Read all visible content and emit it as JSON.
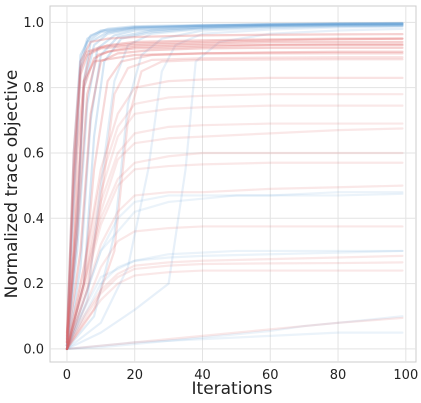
{
  "chart_data": {
    "type": "line",
    "title": "",
    "xlabel": "Iterations",
    "ylabel": "Normalized trace objective",
    "xlim": [
      -5,
      103
    ],
    "ylim": [
      -0.04,
      1.05
    ],
    "xticks": [
      0,
      20,
      40,
      60,
      80,
      100
    ],
    "xtick_labels": [
      "0",
      "20",
      "40",
      "60",
      "80",
      "100"
    ],
    "yticks": [
      0.0,
      0.2,
      0.4,
      0.6,
      0.8,
      1.0
    ],
    "ytick_labels": [
      "0.0",
      "0.2",
      "0.4",
      "0.6",
      "0.8",
      "1.0"
    ],
    "grid": true,
    "legend": false,
    "colors": {
      "blue": "#5b9bd5",
      "blue_dark": "#3d85c6",
      "red": "#e06666",
      "red_dark": "#d9534f",
      "grid": "#e3e3e3",
      "spine": "#cccccc"
    },
    "series": [
      {
        "color": "blue",
        "opacity": 0.25,
        "x": [
          0,
          2,
          4,
          6,
          10,
          20,
          40,
          60,
          80,
          99
        ],
        "y": [
          0.01,
          0.45,
          0.85,
          0.94,
          0.97,
          0.985,
          0.99,
          0.993,
          0.995,
          0.996
        ]
      },
      {
        "color": "blue",
        "opacity": 0.25,
        "x": [
          0,
          2,
          4,
          6,
          10,
          20,
          40,
          60,
          80,
          99
        ],
        "y": [
          0.02,
          0.5,
          0.88,
          0.95,
          0.975,
          0.985,
          0.99,
          0.994,
          0.996,
          0.997
        ]
      },
      {
        "color": "blue",
        "opacity": 0.25,
        "x": [
          0,
          3,
          5,
          8,
          12,
          20,
          40,
          60,
          80,
          99
        ],
        "y": [
          0.0,
          0.4,
          0.8,
          0.93,
          0.965,
          0.98,
          0.988,
          0.992,
          0.994,
          0.995
        ]
      },
      {
        "color": "blue",
        "opacity": 0.25,
        "x": [
          0,
          3,
          6,
          9,
          14,
          20,
          40,
          60,
          80,
          99
        ],
        "y": [
          0.01,
          0.3,
          0.75,
          0.92,
          0.96,
          0.975,
          0.985,
          0.99,
          0.993,
          0.994
        ]
      },
      {
        "color": "blue",
        "opacity": 0.25,
        "x": [
          0,
          4,
          7,
          10,
          15,
          25,
          40,
          60,
          80,
          99
        ],
        "y": [
          0.0,
          0.25,
          0.7,
          0.9,
          0.955,
          0.975,
          0.985,
          0.99,
          0.992,
          0.993
        ]
      },
      {
        "color": "blue",
        "opacity": 0.25,
        "x": [
          0,
          2,
          4,
          7,
          12,
          20,
          40,
          60,
          80,
          99
        ],
        "y": [
          0.03,
          0.6,
          0.9,
          0.96,
          0.98,
          0.988,
          0.992,
          0.995,
          0.997,
          0.998
        ]
      },
      {
        "color": "blue",
        "opacity": 0.25,
        "x": [
          0,
          5,
          8,
          11,
          16,
          25,
          40,
          60,
          80,
          99
        ],
        "y": [
          0.0,
          0.2,
          0.65,
          0.88,
          0.95,
          0.97,
          0.982,
          0.988,
          0.99,
          0.991
        ]
      },
      {
        "color": "blue",
        "opacity": 0.25,
        "x": [
          0,
          3,
          5,
          7,
          12,
          20,
          40,
          60,
          80,
          99
        ],
        "y": [
          0.01,
          0.35,
          0.82,
          0.94,
          0.97,
          0.982,
          0.99,
          0.993,
          0.995,
          0.996
        ]
      },
      {
        "color": "blue",
        "opacity": 0.18,
        "x": [
          0,
          6,
          10,
          14,
          18,
          25,
          40,
          60,
          80,
          99
        ],
        "y": [
          0.0,
          0.15,
          0.5,
          0.82,
          0.93,
          0.965,
          0.98,
          0.986,
          0.989,
          0.99
        ]
      },
      {
        "color": "blue",
        "opacity": 0.18,
        "x": [
          0,
          8,
          14,
          18,
          22,
          28,
          40,
          60,
          80,
          99
        ],
        "y": [
          0.0,
          0.1,
          0.35,
          0.75,
          0.9,
          0.95,
          0.975,
          0.983,
          0.987,
          0.989
        ]
      },
      {
        "color": "blue",
        "opacity": 0.15,
        "x": [
          0,
          10,
          18,
          24,
          28,
          32,
          40,
          60,
          80,
          99
        ],
        "y": [
          0.0,
          0.08,
          0.25,
          0.55,
          0.85,
          0.93,
          0.965,
          0.978,
          0.984,
          0.987
        ]
      },
      {
        "color": "blue",
        "opacity": 0.15,
        "x": [
          0,
          10,
          20,
          30,
          35,
          38,
          45,
          60,
          80,
          99
        ],
        "y": [
          0.0,
          0.05,
          0.12,
          0.2,
          0.55,
          0.88,
          0.94,
          0.965,
          0.975,
          0.98
        ]
      },
      {
        "color": "blue",
        "opacity": 0.12,
        "x": [
          0,
          5,
          10,
          15,
          20,
          30,
          40,
          60,
          80,
          99
        ],
        "y": [
          0.0,
          0.15,
          0.3,
          0.4,
          0.45,
          0.47,
          0.47,
          0.47,
          0.47,
          0.475
        ]
      },
      {
        "color": "blue",
        "opacity": 0.12,
        "x": [
          0,
          5,
          10,
          15,
          20,
          30,
          40,
          60,
          80,
          99
        ],
        "y": [
          0.0,
          0.1,
          0.2,
          0.25,
          0.27,
          0.28,
          0.285,
          0.29,
          0.295,
          0.3
        ]
      },
      {
        "color": "blue",
        "opacity": 0.12,
        "x": [
          0,
          10,
          20,
          30,
          40,
          50,
          60,
          70,
          80,
          99
        ],
        "y": [
          0.0,
          0.01,
          0.02,
          0.025,
          0.03,
          0.035,
          0.04,
          0.045,
          0.05,
          0.05
        ]
      },
      {
        "color": "blue",
        "opacity": 0.12,
        "x": [
          0,
          10,
          20,
          30,
          40,
          50,
          60,
          70,
          80,
          99
        ],
        "y": [
          0.0,
          0.005,
          0.015,
          0.025,
          0.035,
          0.045,
          0.055,
          0.07,
          0.08,
          0.1
        ]
      },
      {
        "color": "blue",
        "opacity": 0.12,
        "x": [
          0,
          5,
          10,
          20,
          30,
          40,
          50,
          60,
          80,
          99
        ],
        "y": [
          0.0,
          0.15,
          0.3,
          0.42,
          0.45,
          0.46,
          0.47,
          0.47,
          0.48,
          0.48
        ]
      },
      {
        "color": "blue",
        "opacity": 0.12,
        "x": [
          0,
          5,
          10,
          20,
          30,
          40,
          50,
          60,
          80,
          99
        ],
        "y": [
          0.0,
          0.12,
          0.22,
          0.27,
          0.29,
          0.295,
          0.3,
          0.3,
          0.3,
          0.3
        ]
      },
      {
        "color": "red",
        "opacity": 0.3,
        "x": [
          0,
          2,
          4,
          6,
          10,
          20,
          40,
          60,
          80,
          99
        ],
        "y": [
          0.02,
          0.5,
          0.84,
          0.9,
          0.92,
          0.93,
          0.935,
          0.94,
          0.94,
          0.94
        ]
      },
      {
        "color": "red",
        "opacity": 0.3,
        "x": [
          0,
          2,
          4,
          6,
          10,
          20,
          40,
          60,
          80,
          99
        ],
        "y": [
          0.03,
          0.55,
          0.86,
          0.91,
          0.925,
          0.935,
          0.94,
          0.945,
          0.948,
          0.95
        ]
      },
      {
        "color": "red",
        "opacity": 0.3,
        "x": [
          0,
          3,
          5,
          8,
          12,
          20,
          40,
          60,
          80,
          99
        ],
        "y": [
          0.01,
          0.4,
          0.8,
          0.89,
          0.91,
          0.92,
          0.925,
          0.93,
          0.93,
          0.93
        ]
      },
      {
        "color": "red",
        "opacity": 0.3,
        "x": [
          0,
          3,
          6,
          9,
          14,
          20,
          40,
          60,
          80,
          99
        ],
        "y": [
          0.02,
          0.35,
          0.78,
          0.9,
          0.915,
          0.925,
          0.93,
          0.932,
          0.933,
          0.933
        ]
      },
      {
        "color": "red",
        "opacity": 0.3,
        "x": [
          0,
          4,
          7,
          10,
          15,
          25,
          40,
          60,
          80,
          99
        ],
        "y": [
          0.01,
          0.3,
          0.72,
          0.88,
          0.905,
          0.915,
          0.92,
          0.922,
          0.922,
          0.922
        ]
      },
      {
        "color": "red",
        "opacity": 0.3,
        "x": [
          0,
          2,
          4,
          7,
          12,
          20,
          40,
          60,
          80,
          99
        ],
        "y": [
          0.04,
          0.6,
          0.88,
          0.94,
          0.95,
          0.955,
          0.96,
          0.962,
          0.963,
          0.964
        ]
      },
      {
        "color": "red",
        "opacity": 0.3,
        "x": [
          0,
          2,
          3,
          5,
          8,
          20,
          40,
          60,
          80,
          99
        ],
        "y": [
          0.05,
          0.3,
          0.6,
          0.82,
          0.88,
          0.9,
          0.905,
          0.908,
          0.91,
          0.91
        ]
      },
      {
        "color": "red",
        "opacity": 0.3,
        "x": [
          0,
          3,
          5,
          7,
          12,
          20,
          40,
          60,
          80,
          99
        ],
        "y": [
          0.02,
          0.45,
          0.82,
          0.91,
          0.93,
          0.94,
          0.945,
          0.948,
          0.95,
          0.95
        ]
      },
      {
        "color": "red",
        "opacity": 0.25,
        "x": [
          0,
          5,
          8,
          12,
          16,
          25,
          40,
          60,
          80,
          99
        ],
        "y": [
          0.0,
          0.2,
          0.55,
          0.82,
          0.88,
          0.9,
          0.905,
          0.905,
          0.905,
          0.905
        ]
      },
      {
        "color": "red",
        "opacity": 0.2,
        "x": [
          0,
          6,
          10,
          14,
          18,
          25,
          40,
          60,
          80,
          99
        ],
        "y": [
          0.0,
          0.18,
          0.45,
          0.78,
          0.86,
          0.885,
          0.89,
          0.892,
          0.893,
          0.893
        ]
      },
      {
        "color": "red",
        "opacity": 0.2,
        "x": [
          0,
          8,
          14,
          18,
          22,
          28,
          40,
          60,
          80,
          99
        ],
        "y": [
          0.0,
          0.12,
          0.3,
          0.7,
          0.85,
          0.88,
          0.885,
          0.886,
          0.887,
          0.887
        ]
      },
      {
        "color": "red",
        "opacity": 0.18,
        "x": [
          0,
          5,
          10,
          15,
          20,
          30,
          40,
          60,
          80,
          99
        ],
        "y": [
          0.0,
          0.25,
          0.55,
          0.72,
          0.8,
          0.82,
          0.825,
          0.83,
          0.83,
          0.83
        ]
      },
      {
        "color": "red",
        "opacity": 0.15,
        "x": [
          0,
          5,
          10,
          15,
          20,
          30,
          40,
          60,
          80,
          99
        ],
        "y": [
          0.0,
          0.2,
          0.45,
          0.6,
          0.66,
          0.68,
          0.685,
          0.69,
          0.69,
          0.69
        ]
      },
      {
        "color": "red",
        "opacity": 0.15,
        "x": [
          0,
          5,
          10,
          15,
          20,
          30,
          40,
          60,
          80,
          99
        ],
        "y": [
          0.0,
          0.22,
          0.48,
          0.65,
          0.72,
          0.735,
          0.74,
          0.745,
          0.745,
          0.745
        ]
      },
      {
        "color": "red",
        "opacity": 0.15,
        "x": [
          0,
          5,
          10,
          15,
          20,
          30,
          40,
          60,
          80,
          99
        ],
        "y": [
          0.0,
          0.2,
          0.4,
          0.52,
          0.57,
          0.59,
          0.6,
          0.6,
          0.6,
          0.6
        ]
      },
      {
        "color": "red",
        "opacity": 0.15,
        "x": [
          0,
          5,
          10,
          15,
          20,
          30,
          40,
          60,
          80,
          99
        ],
        "y": [
          0.0,
          0.18,
          0.38,
          0.5,
          0.55,
          0.56,
          0.565,
          0.57,
          0.57,
          0.57
        ]
      },
      {
        "color": "red",
        "opacity": 0.15,
        "x": [
          0,
          5,
          10,
          15,
          20,
          30,
          40,
          60,
          80,
          99
        ],
        "y": [
          0.0,
          0.2,
          0.42,
          0.58,
          0.63,
          0.645,
          0.65,
          0.66,
          0.67,
          0.675
        ]
      },
      {
        "color": "red",
        "opacity": 0.15,
        "x": [
          0,
          5,
          10,
          15,
          20,
          30,
          40,
          60,
          80,
          99
        ],
        "y": [
          0.0,
          0.15,
          0.32,
          0.42,
          0.47,
          0.48,
          0.48,
          0.49,
          0.495,
          0.5
        ]
      },
      {
        "color": "red",
        "opacity": 0.15,
        "x": [
          0,
          5,
          10,
          15,
          20,
          30,
          40,
          60,
          80,
          99
        ],
        "y": [
          0.0,
          0.12,
          0.25,
          0.33,
          0.36,
          0.37,
          0.375,
          0.375,
          0.375,
          0.375
        ]
      },
      {
        "color": "red",
        "opacity": 0.15,
        "x": [
          0,
          5,
          10,
          15,
          20,
          30,
          40,
          60,
          80,
          99
        ],
        "y": [
          0.0,
          0.1,
          0.18,
          0.23,
          0.255,
          0.265,
          0.27,
          0.275,
          0.28,
          0.285
        ]
      },
      {
        "color": "red",
        "opacity": 0.15,
        "x": [
          0,
          5,
          10,
          15,
          20,
          30,
          40,
          60,
          80,
          99
        ],
        "y": [
          0.0,
          0.08,
          0.15,
          0.2,
          0.225,
          0.235,
          0.24,
          0.24,
          0.24,
          0.24
        ]
      },
      {
        "color": "red",
        "opacity": 0.15,
        "x": [
          0,
          5,
          10,
          15,
          20,
          30,
          40,
          60,
          80,
          99
        ],
        "y": [
          0.0,
          0.09,
          0.17,
          0.22,
          0.245,
          0.255,
          0.26,
          0.262,
          0.263,
          0.265
        ]
      },
      {
        "color": "red",
        "opacity": 0.15,
        "x": [
          0,
          10,
          20,
          30,
          40,
          50,
          60,
          70,
          80,
          99
        ],
        "y": [
          0.0,
          0.01,
          0.02,
          0.03,
          0.04,
          0.05,
          0.06,
          0.07,
          0.08,
          0.095
        ]
      },
      {
        "color": "red",
        "opacity": 0.15,
        "x": [
          0,
          5,
          10,
          15,
          20,
          30,
          40,
          60,
          80,
          99
        ],
        "y": [
          0.0,
          0.25,
          0.52,
          0.68,
          0.75,
          0.77,
          0.775,
          0.78,
          0.78,
          0.78
        ]
      }
    ]
  }
}
